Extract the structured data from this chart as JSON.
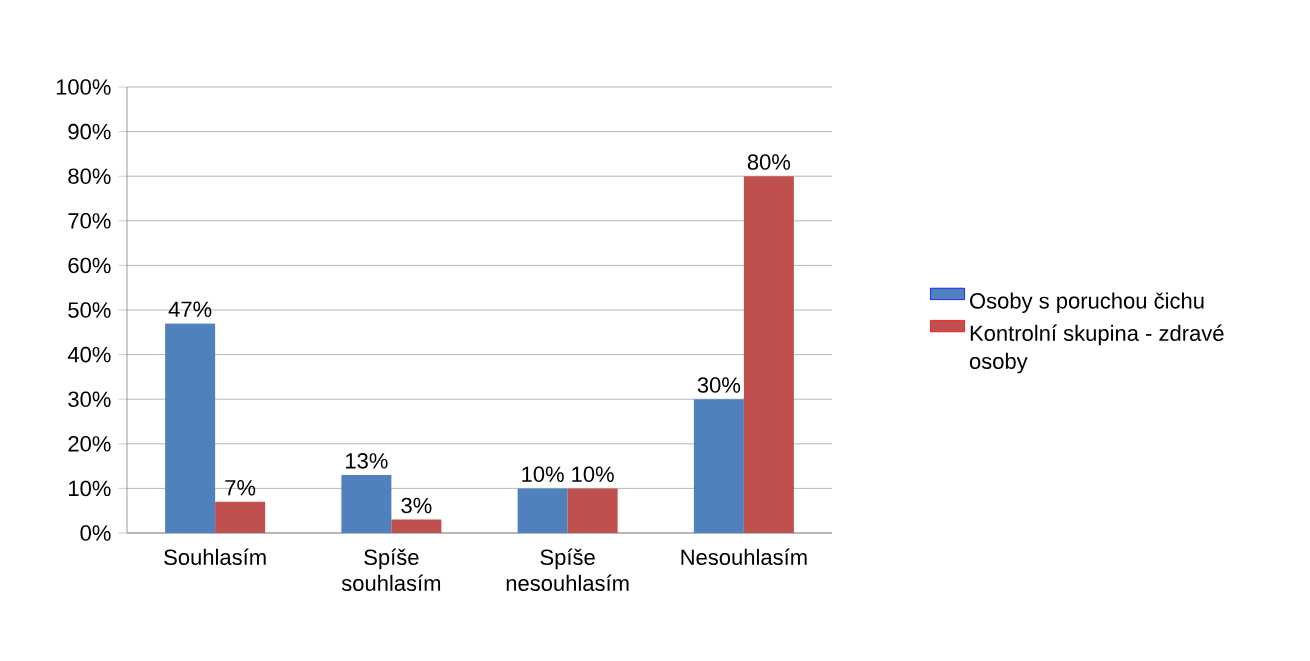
{
  "chart_data": {
    "type": "bar",
    "categories": [
      "Souhlasím",
      "Spíše souhlasím",
      "Spíše nesouhlasím",
      "Nesouhlasím"
    ],
    "series": [
      {
        "name": "Osoby s poruchou čichu",
        "color": "#4f81bd",
        "values": [
          47,
          13,
          10,
          30
        ],
        "value_labels": [
          "47%",
          "13%",
          "10%",
          "30%"
        ]
      },
      {
        "name": "Kontrolní skupina - zdravé osoby",
        "color": "#c0504d",
        "values": [
          7,
          3,
          10,
          80
        ],
        "value_labels": [
          "7%",
          "3%",
          "10%",
          "80%"
        ]
      }
    ],
    "ylim": [
      0,
      100
    ],
    "yticks": [
      {
        "value": 0,
        "label": "0%"
      },
      {
        "value": 10,
        "label": "10%"
      },
      {
        "value": 20,
        "label": "20%"
      },
      {
        "value": 30,
        "label": "30%"
      },
      {
        "value": 40,
        "label": "40%"
      },
      {
        "value": 50,
        "label": "50%"
      },
      {
        "value": 60,
        "label": "60%"
      },
      {
        "value": 70,
        "label": "70%"
      },
      {
        "value": 80,
        "label": "80%"
      },
      {
        "value": 90,
        "label": "90%"
      },
      {
        "value": 100,
        "label": "100%"
      }
    ],
    "grid": "y",
    "legend": "right"
  }
}
